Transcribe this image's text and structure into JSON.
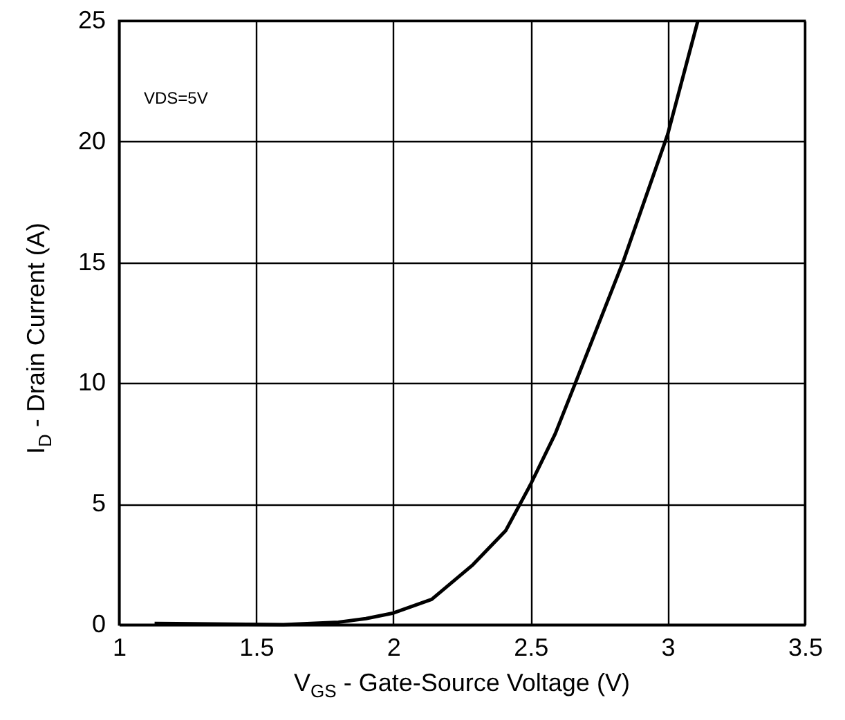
{
  "chart_data": {
    "type": "line",
    "xlabel": "V$_{GS}$ - Gate-Source Voltage (V)",
    "ylabel": "I$_{D}$ - Drain Current  (A)",
    "annotations": [
      "VDS=5V"
    ],
    "x": [
      1.13,
      1.4,
      1.6,
      1.8,
      1.9,
      2.0,
      2.14,
      2.29,
      2.41,
      2.5,
      2.59,
      2.66,
      2.84,
      3.0,
      3.11
    ],
    "series": [
      {
        "color": "#000000",
        "values": [
          0.05,
          0.02,
          0,
          0.1,
          0.25,
          0.48,
          1.05,
          2.48,
          3.9,
          5.8,
          7.9,
          9.9,
          15.1,
          20.3,
          25
        ]
      }
    ],
    "xlim": [
      1,
      3.5
    ],
    "xticks": [
      1,
      1.5,
      2,
      2.5,
      3,
      3.5
    ],
    "ylim": [
      0,
      25
    ],
    "yticks": [
      0,
      5,
      10,
      15,
      20,
      25
    ],
    "grid": true,
    "marker": "none",
    "line_style": "solid"
  }
}
